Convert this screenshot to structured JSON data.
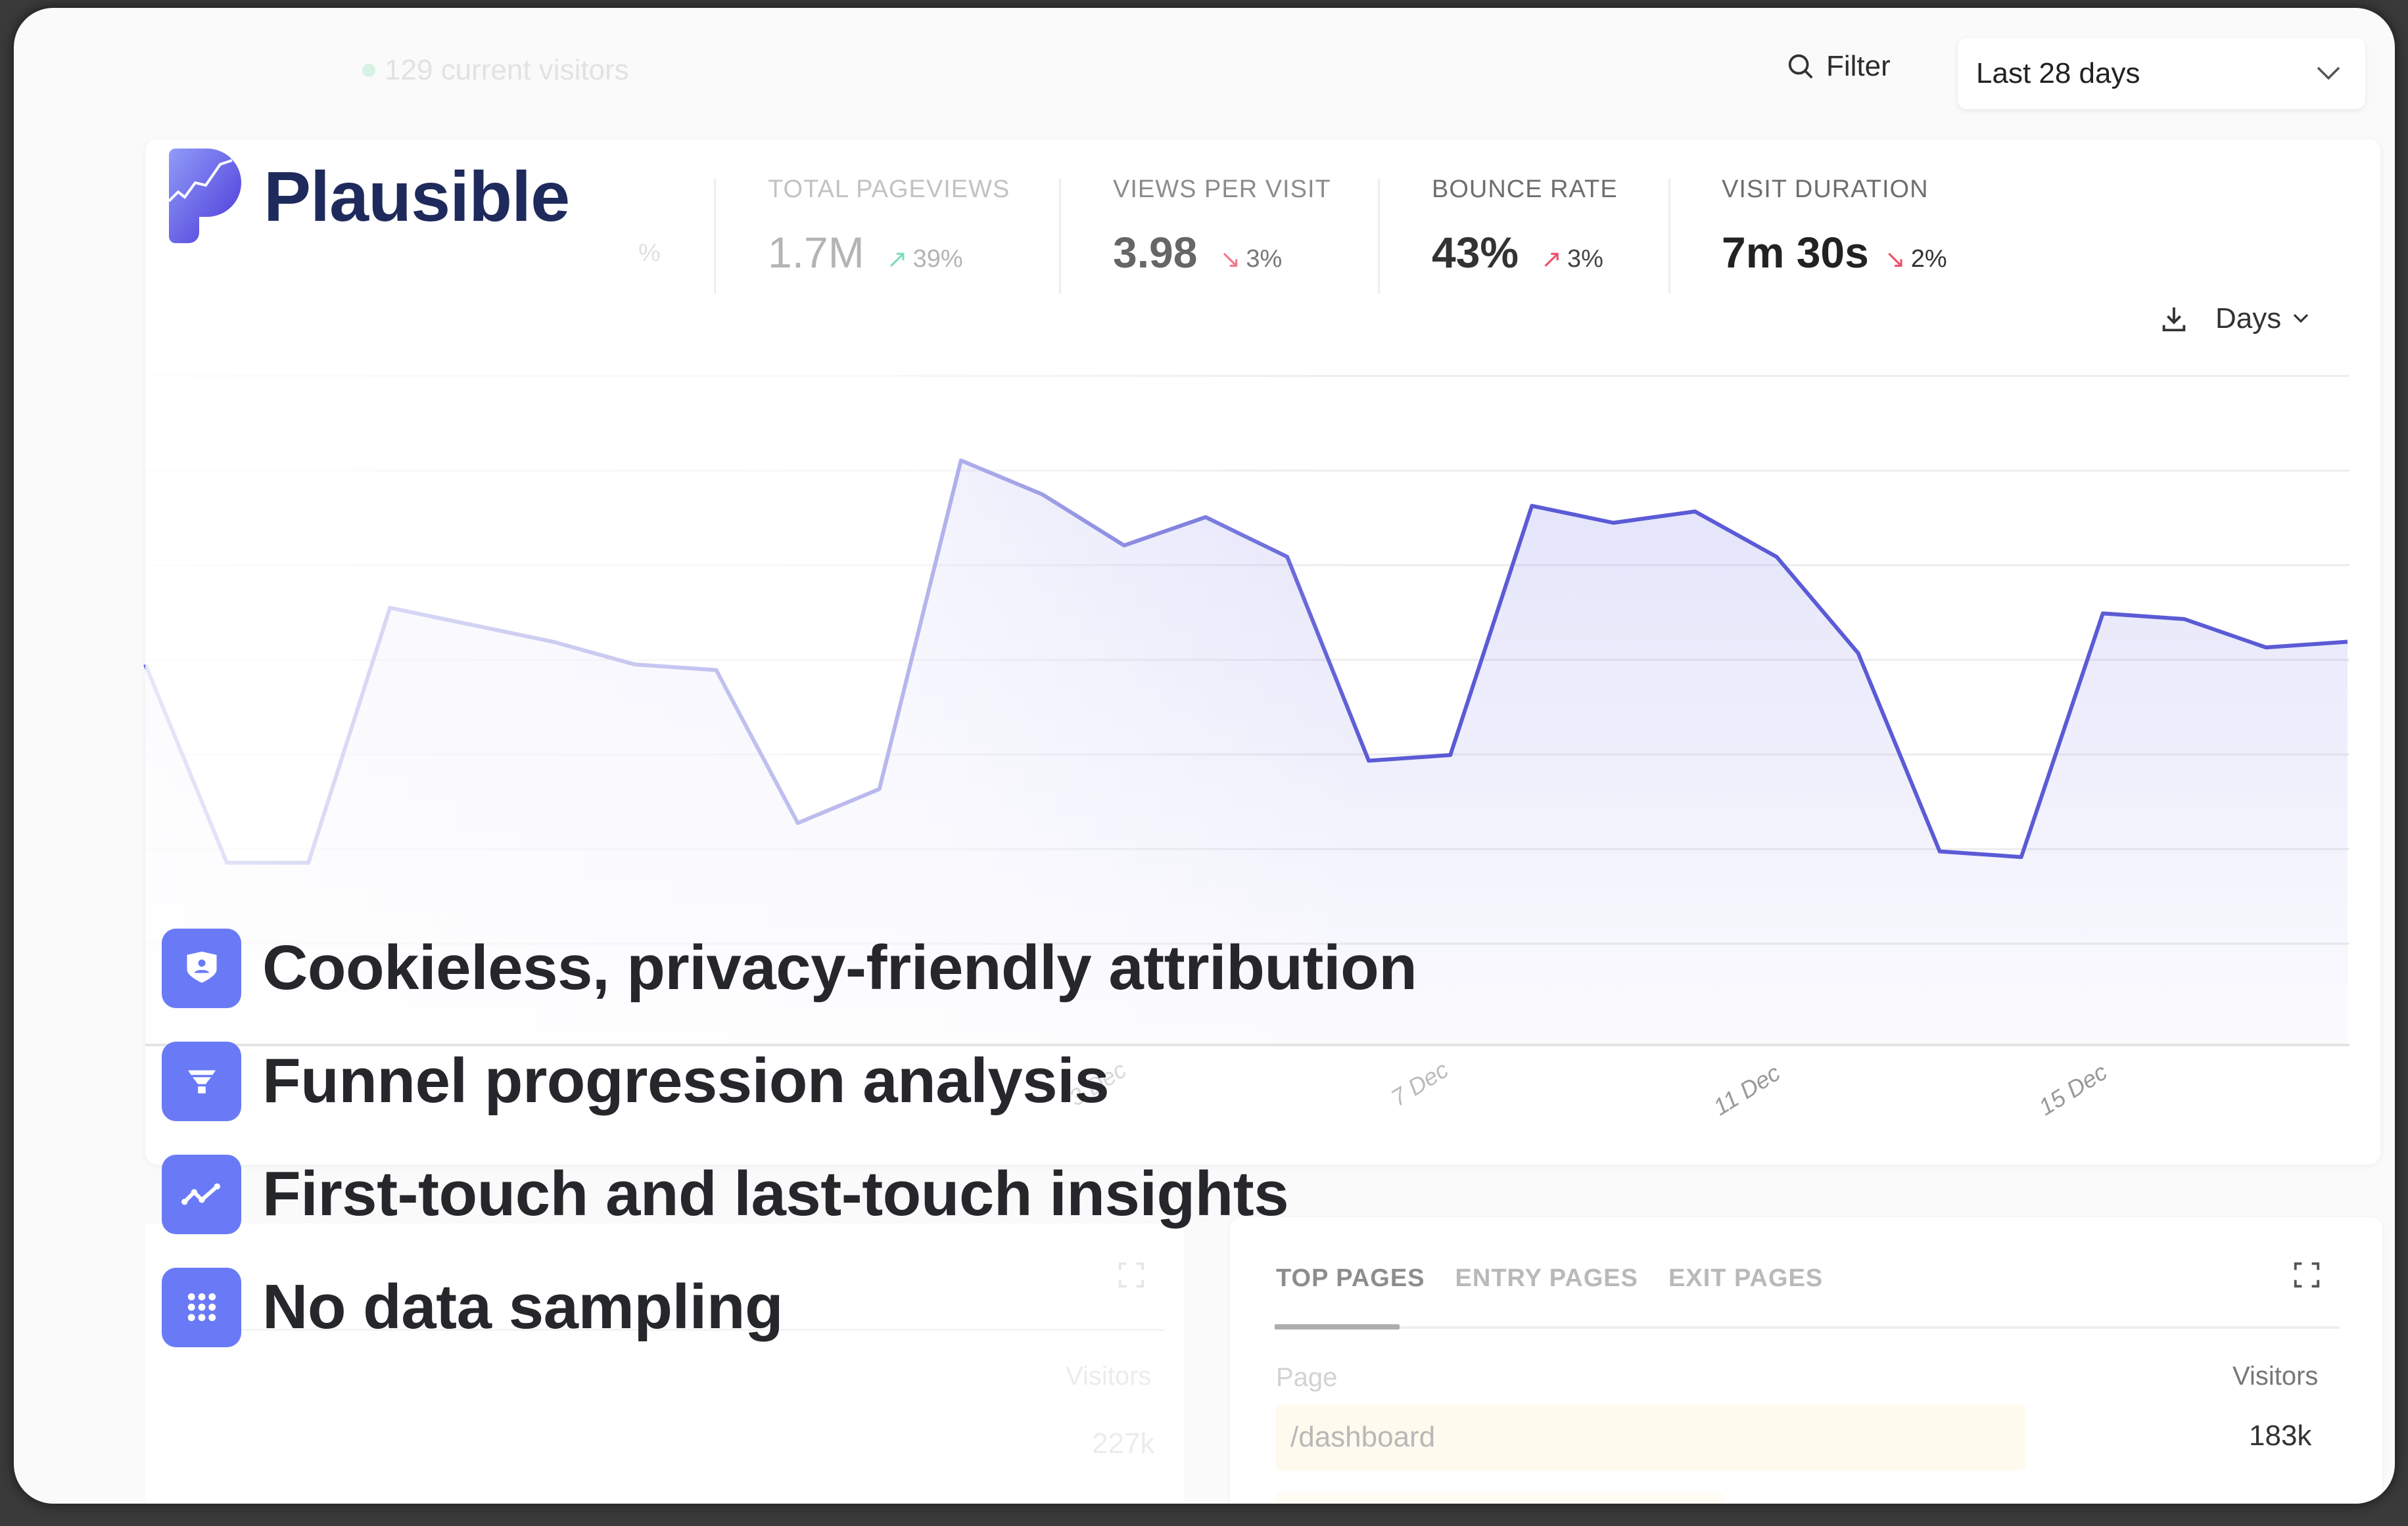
{
  "header": {
    "current_visitors": "129 current visitors",
    "filter_label": "Filter",
    "date_range": "Last 28 days"
  },
  "brand": {
    "name": "Plausible",
    "accent": "#6a7af6",
    "logo_color": "#1f2a5c"
  },
  "stats": [
    {
      "label": "TOTAL PAGEVIEWS",
      "value": "1.7M",
      "change": "39%",
      "direction": "up",
      "change_color": "#3cc79a"
    },
    {
      "label": "VIEWS PER VISIT",
      "value": "3.98",
      "change": "3%",
      "direction": "down",
      "change_color": "#f0526a"
    },
    {
      "label": "BOUNCE RATE",
      "value": "43%",
      "change": "3%",
      "direction": "up",
      "change_color": "#f0526a"
    },
    {
      "label": "VISIT DURATION",
      "value": "7m 30s",
      "change": "2%",
      "direction": "down",
      "change_color": "#f0526a"
    }
  ],
  "hidden_stat_fragment": "%",
  "chart_controls": {
    "interval": "Days"
  },
  "chart_data": {
    "type": "area",
    "title": "",
    "xlabel": "",
    "ylabel": "",
    "x_tick_labels": [
      "3 Dec",
      "7 Dec",
      "11 Dec",
      "15 Dec"
    ],
    "values": [
      50,
      15,
      15,
      60,
      57,
      54,
      50,
      49,
      22,
      28,
      86,
      80,
      71,
      76,
      69,
      33,
      34,
      78,
      75,
      77,
      69,
      52,
      17,
      16,
      59,
      58,
      53,
      54
    ],
    "grid": true,
    "line_color": "#5b5bd6"
  },
  "features": [
    {
      "icon": "shield-user-icon",
      "text": "Cookieless, privacy-friendly attribution"
    },
    {
      "icon": "funnel-icon",
      "text": "Funnel progression analysis"
    },
    {
      "icon": "trend-line-icon",
      "text": "First-touch and last-touch insights"
    },
    {
      "icon": "grid-dots-icon",
      "text": "No data sampling"
    }
  ],
  "left_panel": {
    "col_header": "Visitors",
    "first_value": "227k"
  },
  "pages_panel": {
    "tabs": [
      "TOP PAGES",
      "ENTRY PAGES",
      "EXIT PAGES"
    ],
    "active_tab": "TOP PAGES",
    "col_page": "Page",
    "col_visitors": "Visitors",
    "rows": [
      {
        "page": "/dashboard",
        "visitors": "183k"
      }
    ]
  }
}
